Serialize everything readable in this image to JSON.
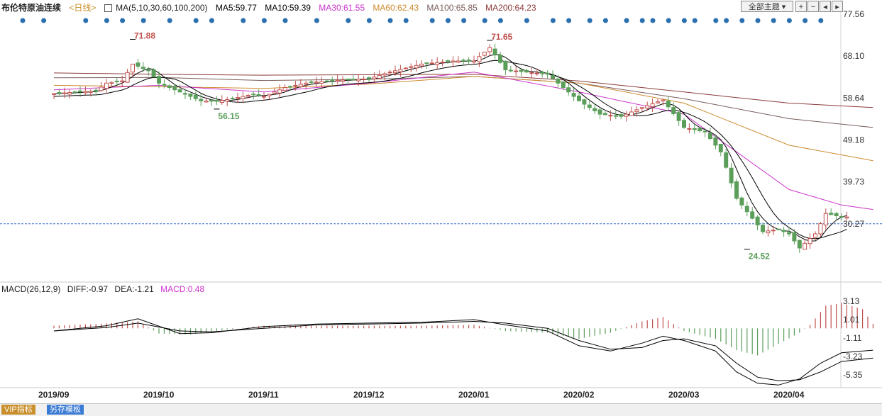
{
  "header": {
    "instrument": "布伦特原油连续",
    "period": "<日线>",
    "ma_icon": "grid-icon",
    "ma_label": "MA(5,10,30,60,100,200)",
    "ma_values": [
      {
        "label": "MA5:59.77",
        "color": "#000000"
      },
      {
        "label": "MA10:59.39",
        "color": "#000000"
      },
      {
        "label": "MA30:61.55",
        "color": "#cc33cc"
      },
      {
        "label": "MA60:62.43",
        "color": "#cc8a2e"
      },
      {
        "label": "MA100:65.85",
        "color": "#7a5c5c"
      },
      {
        "label": "MA200:64.23",
        "color": "#8b3a3a"
      }
    ]
  },
  "toolbar": {
    "theme_select": "全部主题",
    "buttons": [
      "zoom-in-icon",
      "zoom-out-icon",
      "scroll-left-icon",
      "scroll-right-icon"
    ]
  },
  "macd_header": {
    "label": "MACD(26,12,9)",
    "diff": "DIFF:-0.97",
    "dea": "DEA:-1.21",
    "macd": "MACD:0.48",
    "macd_color": "#cc33cc"
  },
  "bottom_tabs": [
    {
      "label": "VIP指标",
      "color": "#c98f2a"
    },
    {
      "label": "另存模板",
      "color": "#3a7bd5"
    }
  ],
  "colors": {
    "up": "#c0504d",
    "down": "#5a9e5a",
    "ma30": "#cc33cc",
    "ma60": "#cc8a2e",
    "ma100": "#7a5c5c",
    "ma200": "#8b3a3a",
    "event_dot": "#2a6fb0",
    "dashed_line": "#3366cc"
  },
  "chart_data": [
    {
      "type": "candlestick",
      "title": "布伦特原油连续",
      "x_tick_labels": [
        "2019/09",
        "2019/10",
        "2019/11",
        "2019/12",
        "2020/01",
        "2020/02",
        "2020/03",
        "2020/04"
      ],
      "y_tick_labels": [
        "77.56",
        "68.10",
        "58.64",
        "49.18",
        "39.73",
        "30.27"
      ],
      "ylim": [
        20.8,
        77.56
      ],
      "annotations": [
        {
          "label": "71.88",
          "month_index": 0.75,
          "value": 71.88,
          "kind": "high"
        },
        {
          "label": "56.15",
          "month_index": 1.55,
          "value": 56.15,
          "kind": "low"
        },
        {
          "label": "71.65",
          "month_index": 4.15,
          "value": 71.65,
          "kind": "high"
        },
        {
          "label": "24.52",
          "month_index": 6.6,
          "value": 24.52,
          "kind": "low"
        }
      ],
      "reference_line": {
        "label": "30.27",
        "value": 30.27
      },
      "close_series_by_month_index": [
        [
          0.0,
          59.6
        ],
        [
          0.2,
          60.0
        ],
        [
          0.4,
          60.2
        ],
        [
          0.5,
          62.0
        ],
        [
          0.65,
          62.5
        ],
        [
          0.75,
          66.3
        ],
        [
          0.9,
          64.8
        ],
        [
          1.0,
          62.0
        ],
        [
          1.2,
          60.0
        ],
        [
          1.4,
          58.0
        ],
        [
          1.55,
          57.9
        ],
        [
          1.7,
          58.5
        ],
        [
          1.9,
          59.5
        ],
        [
          2.0,
          59.0
        ],
        [
          2.2,
          61.0
        ],
        [
          2.4,
          62.0
        ],
        [
          2.6,
          62.5
        ],
        [
          3.0,
          63.0
        ],
        [
          3.2,
          64.5
        ],
        [
          3.5,
          66.3
        ],
        [
          3.8,
          67.0
        ],
        [
          4.0,
          67.0
        ],
        [
          4.15,
          70.0
        ],
        [
          4.3,
          65.0
        ],
        [
          4.5,
          64.5
        ],
        [
          4.7,
          64.0
        ],
        [
          4.8,
          62.0
        ],
        [
          5.0,
          58.0
        ],
        [
          5.2,
          55.0
        ],
        [
          5.4,
          54.5
        ],
        [
          5.6,
          56.5
        ],
        [
          5.8,
          58.2
        ],
        [
          6.0,
          52.0
        ],
        [
          6.2,
          51.0
        ],
        [
          6.35,
          46.5
        ],
        [
          6.5,
          36.0
        ],
        [
          6.6,
          33.0
        ],
        [
          6.75,
          28.5
        ],
        [
          6.9,
          29.0
        ],
        [
          7.0,
          28.0
        ],
        [
          7.1,
          24.8
        ],
        [
          7.25,
          28.0
        ],
        [
          7.35,
          32.6
        ],
        [
          7.5,
          31.8
        ]
      ],
      "ma_series_by_month_index": {
        "MA200": [
          [
            0.0,
            64.3
          ],
          [
            1.0,
            64.0
          ],
          [
            2.0,
            63.8
          ],
          [
            3.0,
            63.9
          ],
          [
            4.0,
            64.0
          ],
          [
            5.0,
            62.5
          ],
          [
            6.0,
            60.0
          ],
          [
            7.0,
            57.5
          ],
          [
            7.8,
            56.5
          ]
        ],
        "MA100": [
          [
            0.0,
            63.2
          ],
          [
            1.0,
            63.3
          ],
          [
            2.0,
            62.6
          ],
          [
            3.0,
            62.9
          ],
          [
            4.0,
            63.5
          ],
          [
            5.0,
            62.0
          ],
          [
            6.0,
            58.5
          ],
          [
            7.0,
            54.0
          ],
          [
            7.8,
            52.0
          ]
        ],
        "MA60": [
          [
            0.0,
            61.5
          ],
          [
            1.0,
            61.2
          ],
          [
            2.0,
            60.8
          ],
          [
            3.0,
            61.8
          ],
          [
            4.0,
            63.5
          ],
          [
            5.0,
            62.0
          ],
          [
            6.0,
            57.5
          ],
          [
            7.0,
            48.0
          ],
          [
            7.8,
            44.5
          ]
        ],
        "MA30": [
          [
            0.0,
            60.5
          ],
          [
            1.0,
            61.5
          ],
          [
            2.0,
            60.0
          ],
          [
            3.0,
            62.0
          ],
          [
            4.0,
            64.5
          ],
          [
            5.0,
            60.0
          ],
          [
            6.0,
            55.0
          ],
          [
            7.0,
            38.0
          ],
          [
            7.5,
            34.5
          ],
          [
            7.8,
            33.5
          ]
        ]
      },
      "event_dots_by_month_index": [
        0.0,
        0.2,
        0.6,
        0.8,
        0.95,
        1.15,
        1.4,
        1.65,
        1.8,
        2.1,
        2.3,
        2.5,
        2.8,
        3.1,
        3.3,
        3.5,
        3.65,
        3.9,
        4.05,
        4.2,
        4.4,
        4.55,
        4.8,
        5.05,
        5.2,
        5.4,
        5.55,
        5.75,
        5.9,
        6.0,
        6.15,
        6.3,
        6.4,
        6.6,
        6.7,
        6.85,
        7.0,
        7.15,
        7.3,
        7.45,
        7.6
      ]
    },
    {
      "type": "bar",
      "title": "MACD(26,12,9)",
      "y_tick_labels": [
        "3.13",
        "1.01",
        "-1.11",
        "-3.23",
        "-5.35"
      ],
      "ylim": [
        -6.8,
        3.6
      ],
      "series": [
        {
          "name": "DIFF",
          "values_by_month_index": [
            [
              0.0,
              -0.3
            ],
            [
              0.5,
              0.3
            ],
            [
              0.8,
              1.1
            ],
            [
              1.2,
              -0.6
            ],
            [
              1.5,
              -0.5
            ],
            [
              2.0,
              0.2
            ],
            [
              2.5,
              0.5
            ],
            [
              3.0,
              0.6
            ],
            [
              3.5,
              0.7
            ],
            [
              4.0,
              1.0
            ],
            [
              4.3,
              0.4
            ],
            [
              4.7,
              -0.3
            ],
            [
              5.0,
              -2.0
            ],
            [
              5.3,
              -2.6
            ],
            [
              5.6,
              -1.7
            ],
            [
              5.8,
              -0.9
            ],
            [
              6.0,
              -1.4
            ],
            [
              6.3,
              -2.6
            ],
            [
              6.5,
              -5.0
            ],
            [
              6.7,
              -6.3
            ],
            [
              6.9,
              -6.5
            ],
            [
              7.1,
              -5.8
            ],
            [
              7.3,
              -4.0
            ],
            [
              7.5,
              -2.8
            ],
            [
              7.8,
              -2.5
            ]
          ]
        },
        {
          "name": "DEA",
          "values_by_month_index": [
            [
              0.0,
              -0.3
            ],
            [
              0.5,
              0.1
            ],
            [
              0.8,
              0.6
            ],
            [
              1.2,
              -0.3
            ],
            [
              1.5,
              -0.4
            ],
            [
              2.0,
              0.0
            ],
            [
              2.5,
              0.4
            ],
            [
              3.0,
              0.5
            ],
            [
              3.5,
              0.6
            ],
            [
              4.0,
              0.8
            ],
            [
              4.3,
              0.6
            ],
            [
              4.7,
              0.0
            ],
            [
              5.0,
              -1.4
            ],
            [
              5.3,
              -2.4
            ],
            [
              5.6,
              -2.2
            ],
            [
              5.8,
              -1.4
            ],
            [
              6.0,
              -1.2
            ],
            [
              6.3,
              -2.0
            ],
            [
              6.5,
              -4.0
            ],
            [
              6.7,
              -5.6
            ],
            [
              6.9,
              -6.0
            ],
            [
              7.1,
              -5.9
            ],
            [
              7.3,
              -5.0
            ],
            [
              7.5,
              -3.8
            ],
            [
              7.8,
              -3.4
            ]
          ]
        },
        {
          "name": "MACD",
          "values_by_month_index": [
            [
              0.0,
              0.3
            ],
            [
              0.4,
              0.5
            ],
            [
              0.8,
              0.8
            ],
            [
              1.0,
              -0.6
            ],
            [
              1.3,
              -0.7
            ],
            [
              1.6,
              -0.2
            ],
            [
              2.0,
              0.3
            ],
            [
              2.5,
              0.3
            ],
            [
              3.0,
              0.3
            ],
            [
              3.5,
              0.3
            ],
            [
              4.0,
              0.4
            ],
            [
              4.3,
              -0.3
            ],
            [
              4.7,
              -0.5
            ],
            [
              5.0,
              -1.2
            ],
            [
              5.3,
              -0.5
            ],
            [
              5.6,
              0.8
            ],
            [
              5.8,
              1.3
            ],
            [
              6.0,
              -0.3
            ],
            [
              6.3,
              -1.2
            ],
            [
              6.5,
              -2.5
            ],
            [
              6.7,
              -3.1
            ],
            [
              6.9,
              -1.8
            ],
            [
              7.1,
              -0.5
            ],
            [
              7.2,
              0.4
            ],
            [
              7.35,
              2.6
            ],
            [
              7.5,
              2.9
            ],
            [
              7.7,
              2.2
            ],
            [
              7.8,
              0.5
            ]
          ]
        }
      ]
    }
  ]
}
